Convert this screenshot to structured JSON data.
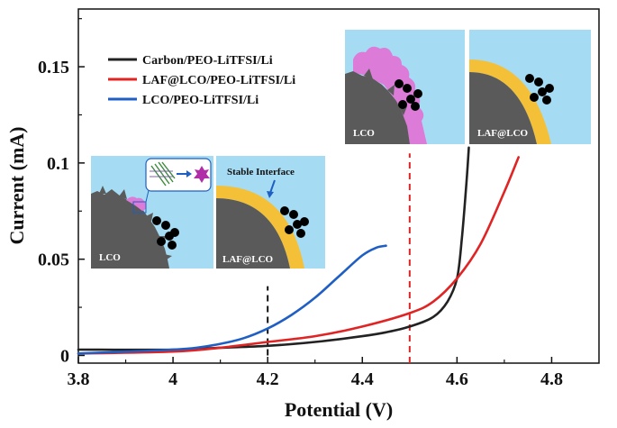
{
  "chart_data": {
    "type": "line",
    "xlabel": "Potential (V)",
    "ylabel": "Current (mA)",
    "xlim": [
      3.8,
      4.9
    ],
    "ylim": [
      -0.004,
      0.18
    ],
    "x_ticks": [
      "3.8",
      "4",
      "4.2",
      "4.4",
      "4.6",
      "4.8"
    ],
    "x_tick_values": [
      3.8,
      4.0,
      4.2,
      4.4,
      4.6,
      4.8
    ],
    "y_ticks": [
      "0",
      "0.05",
      "0.1",
      "0.15"
    ],
    "y_tick_values": [
      0,
      0.05,
      0.1,
      0.15
    ],
    "legend_position": "top-left",
    "series": [
      {
        "name": "Carbon/PEO-LiTFSI/Li",
        "color": "#222222",
        "x": [
          3.8,
          4.0,
          4.1,
          4.2,
          4.3,
          4.4,
          4.45,
          4.5,
          4.55,
          4.58,
          4.6,
          4.61,
          4.62,
          4.625
        ],
        "y": [
          0.003,
          0.003,
          0.004,
          0.005,
          0.007,
          0.01,
          0.012,
          0.015,
          0.02,
          0.028,
          0.04,
          0.06,
          0.09,
          0.108
        ]
      },
      {
        "name": "LAF@LCO/PEO-LiTFSI/Li",
        "color": "#e02424",
        "x": [
          3.8,
          4.0,
          4.1,
          4.2,
          4.3,
          4.4,
          4.5,
          4.55,
          4.6,
          4.65,
          4.7,
          4.73
        ],
        "y": [
          0.001,
          0.002,
          0.004,
          0.007,
          0.01,
          0.015,
          0.022,
          0.028,
          0.04,
          0.058,
          0.085,
          0.103
        ]
      },
      {
        "name": "LCO/PEO-LiTFSI/Li",
        "color": "#1f5fc4",
        "x": [
          3.8,
          3.9,
          4.0,
          4.05,
          4.1,
          4.15,
          4.2,
          4.25,
          4.3,
          4.35,
          4.4,
          4.43,
          4.45
        ],
        "y": [
          0.001,
          0.002,
          0.003,
          0.004,
          0.006,
          0.009,
          0.014,
          0.021,
          0.03,
          0.041,
          0.052,
          0.056,
          0.057
        ]
      }
    ],
    "reference_lines": [
      {
        "x": 4.2,
        "color": "#111111",
        "from_y": 0,
        "to_y": 0.036
      },
      {
        "x": 4.5,
        "color": "#e02424",
        "from_y": -0.004,
        "to_y": 0.105
      }
    ],
    "inset_labels": {
      "lco": "LCO",
      "laf_lco": "LAF@LCO",
      "stable_interface": "Stable Interface"
    }
  }
}
